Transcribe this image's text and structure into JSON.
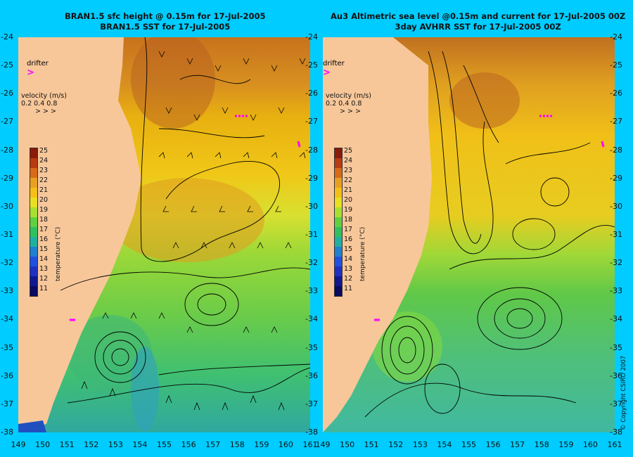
{
  "left_panel": {
    "title_line1": "BRAN1.5 sfc height @ 0.15m for 17-Jul-2005",
    "title_line2": "BRAN1.5 SST for 17-Jul-2005"
  },
  "right_panel": {
    "title_line1": "Au3 Altimetric sea level  @0.15m and current for 17-Jul-2005 00Z",
    "title_line2": "3day AVHRR SST for 17-Jul-2005 00Z"
  },
  "legend": {
    "drifter_label": "drifter",
    "velocity_label": "velocity (m/s)",
    "velocity_scale": "0.2 0.4 0.8",
    "colorbar_title": "temperature (°C)",
    "colorbar_ticks": [
      "25",
      "24",
      "23",
      "22",
      "21",
      "20",
      "19",
      "18",
      "17",
      "16",
      "15",
      "14",
      "13",
      "12",
      "11"
    ]
  },
  "axes": {
    "y_ticks": [
      "-24",
      "-25",
      "-26",
      "-27",
      "-28",
      "-29",
      "-30",
      "-31",
      "-32",
      "-33",
      "-34",
      "-35",
      "-36",
      "-37",
      "-38"
    ],
    "x_ticks_left": [
      "149",
      "150",
      "151",
      "152",
      "153",
      "154",
      "155",
      "156",
      "157",
      "158",
      "159",
      "160",
      "161"
    ],
    "x_ticks_right": [
      "149",
      "150",
      "151",
      "152",
      "153",
      "154",
      "155",
      "156",
      "157",
      "158",
      "159",
      "160",
      "161"
    ]
  },
  "copyright": "© Copyright CSIRO 2007",
  "colors": {
    "background": "#00ccff",
    "land": "#f7c79a",
    "drifter": "#ff00ff"
  }
}
